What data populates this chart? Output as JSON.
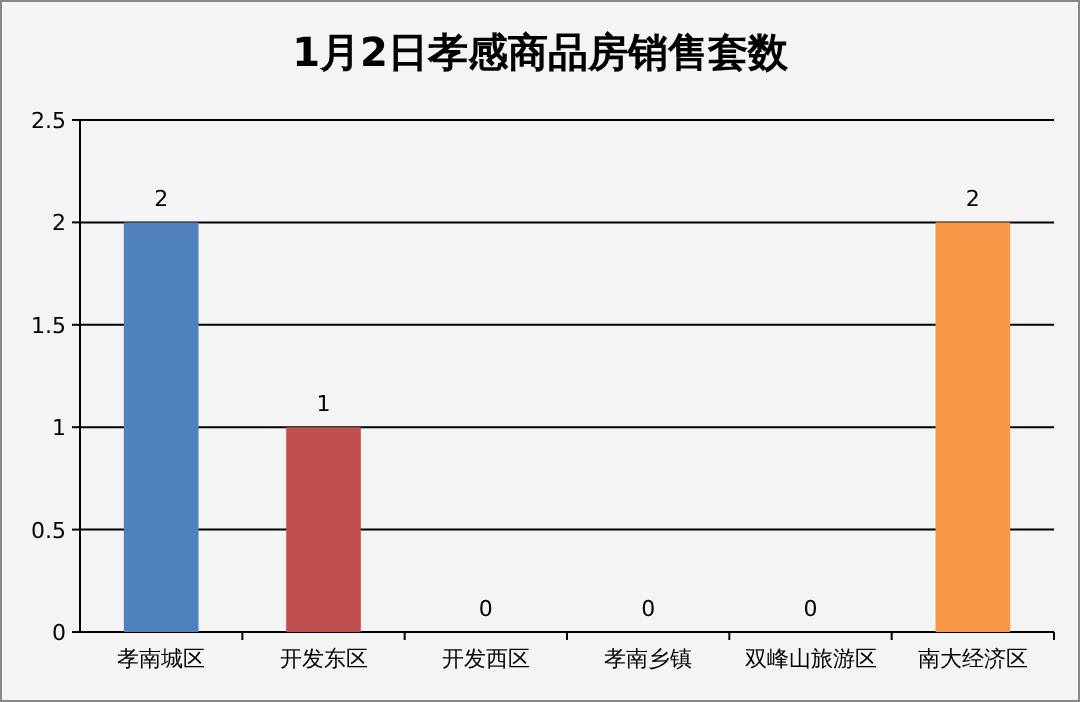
{
  "chart_data": {
    "type": "bar",
    "title": "1月2日孝感商品房销售套数",
    "categories": [
      "孝南城区",
      "开发东区",
      "开发西区",
      "孝南乡镇",
      "双峰山旅游区",
      "南大经济区"
    ],
    "values": [
      2,
      1,
      0,
      0,
      0,
      2
    ],
    "colors": [
      "#4f81bd",
      "#c0504d",
      "#9bbb59",
      "#8064a2",
      "#4bacc6",
      "#f79646"
    ],
    "ylim": [
      0,
      2.5
    ],
    "yticks": [
      0,
      0.5,
      1,
      1.5,
      2,
      2.5
    ],
    "grid": "y",
    "data_labels": true
  }
}
